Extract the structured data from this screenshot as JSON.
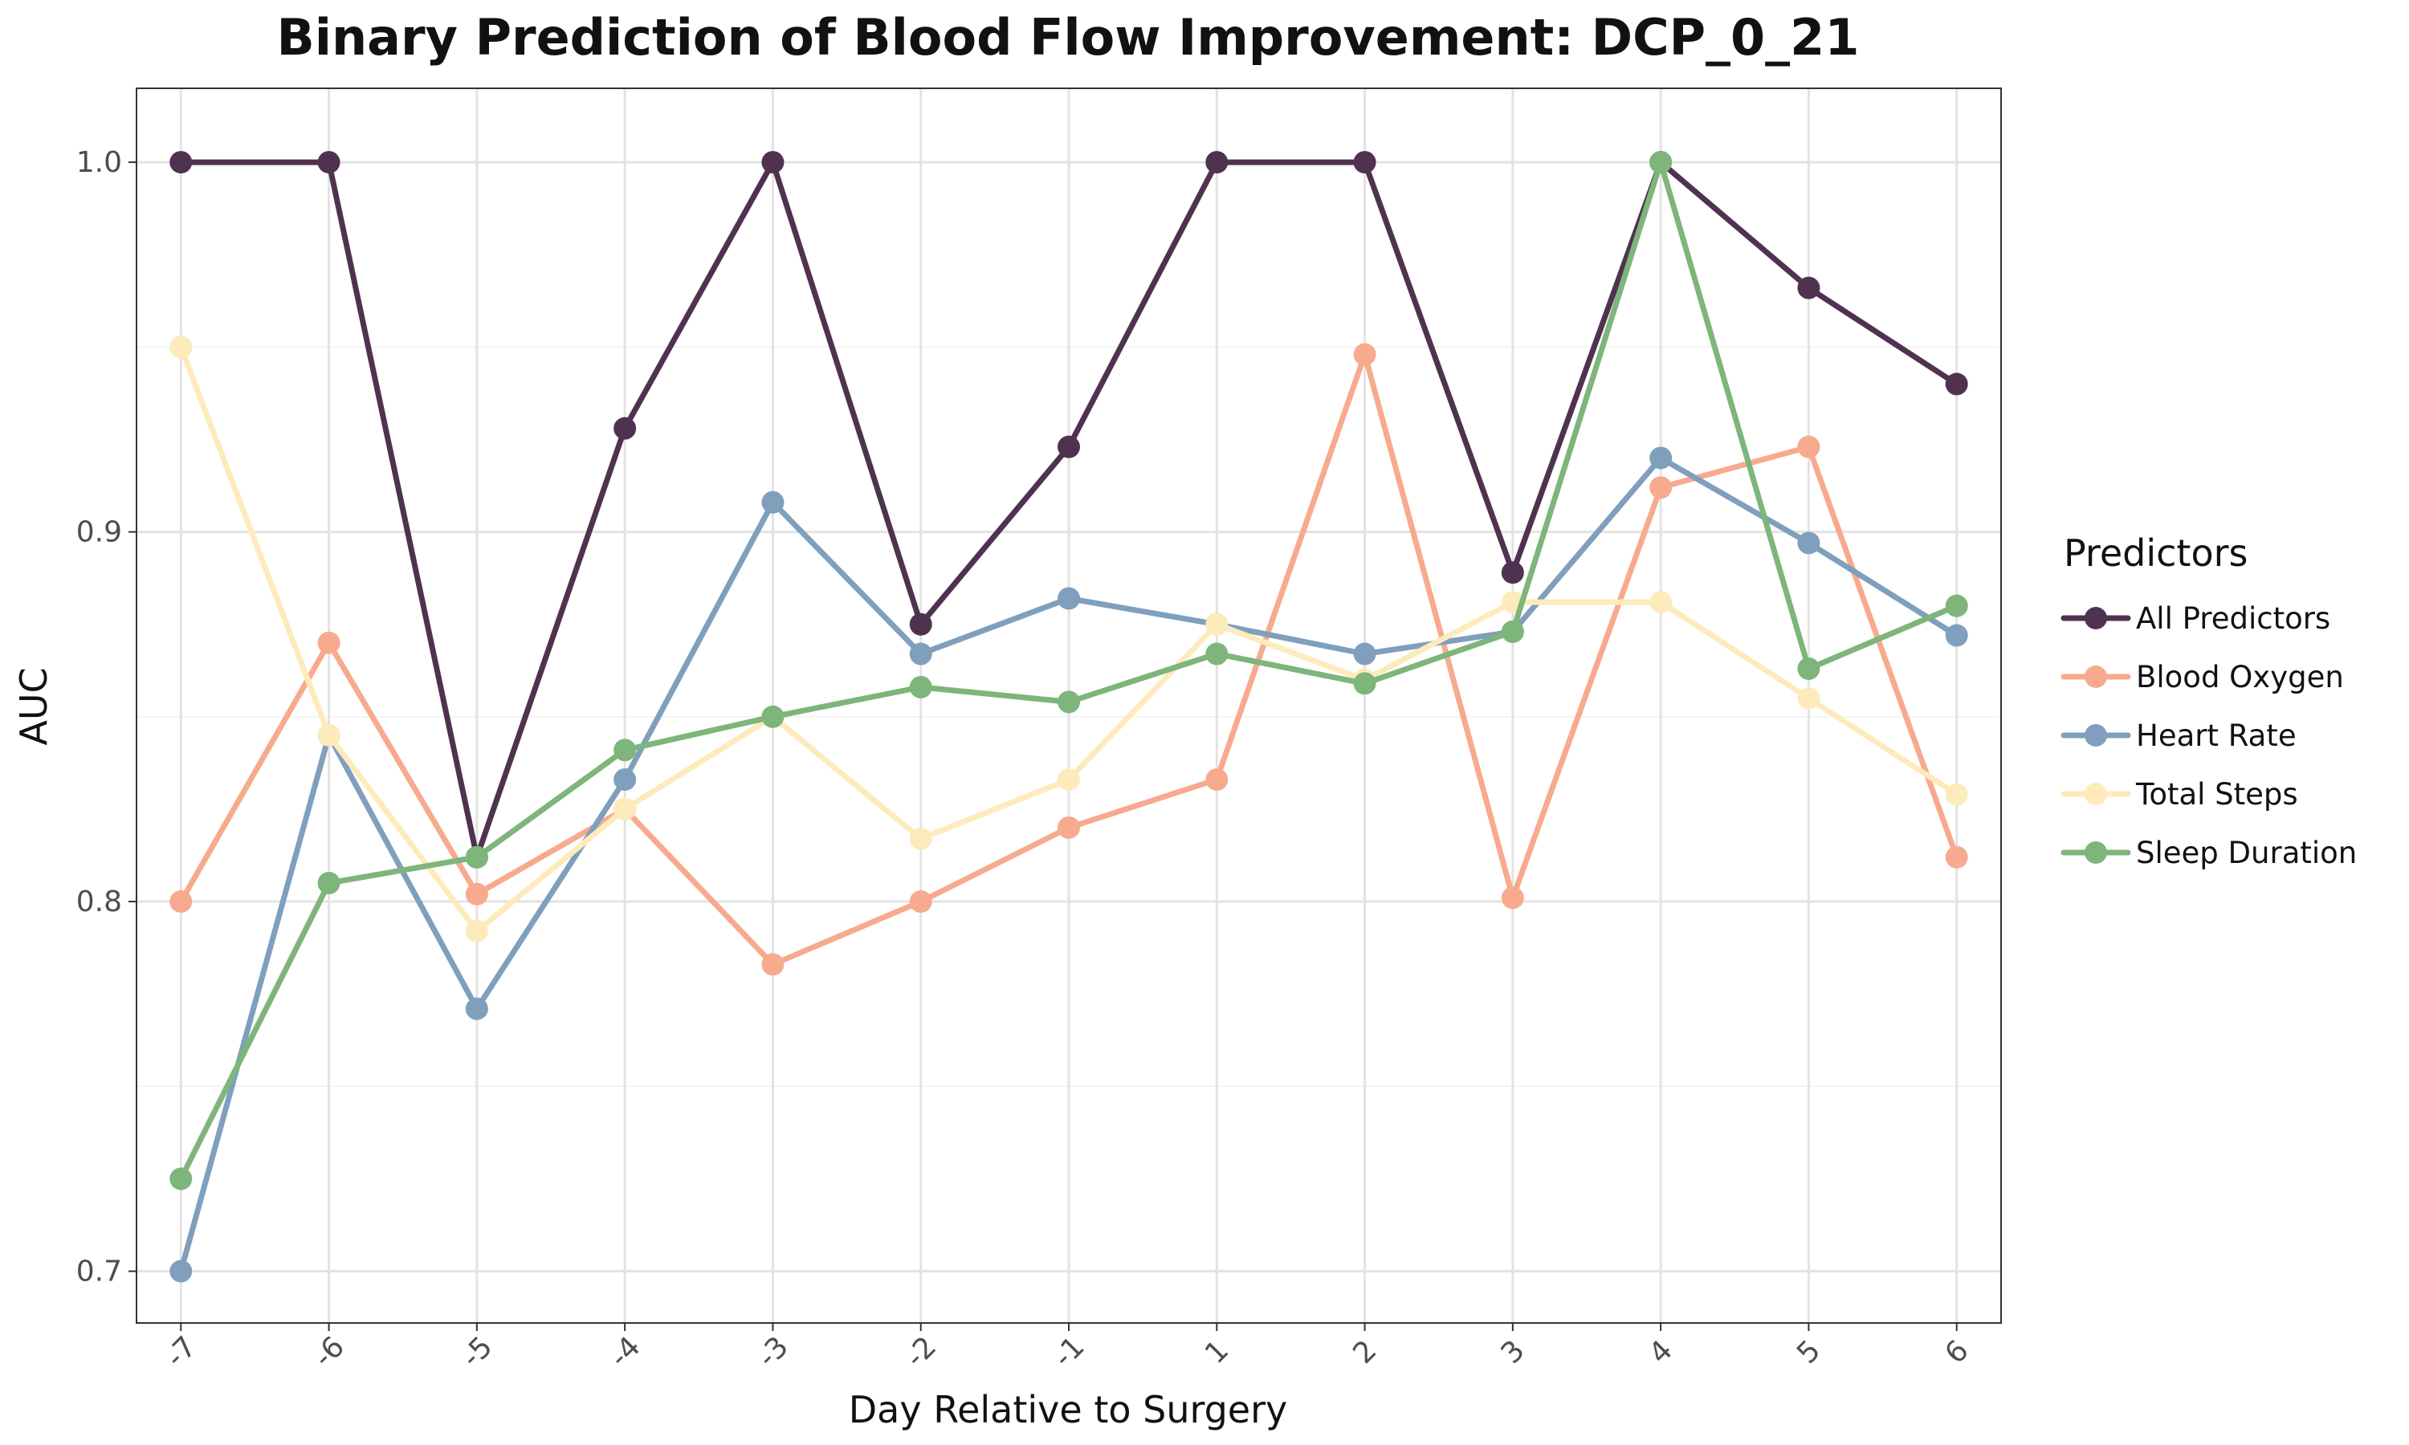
{
  "chart_data": {
    "type": "line",
    "title": "Binary Prediction of Blood Flow Improvement: DCP_0_21",
    "xlabel": "Day Relative to Surgery",
    "ylabel": "AUC",
    "categories": [
      "-7",
      "-6",
      "-5",
      "-4",
      "-3",
      "-2",
      "-1",
      "1",
      "2",
      "3",
      "4",
      "5",
      "6"
    ],
    "yticks": [
      "0.7",
      "0.8",
      "0.9",
      "1.0"
    ],
    "ylim": [
      0.686,
      1.02
    ],
    "grid": true,
    "legend": {
      "title": "Predictors",
      "position": "right"
    },
    "series": [
      {
        "name": "All Predictors",
        "color": "#4f3250",
        "values": [
          1.0,
          1.0,
          0.812,
          0.928,
          1.0,
          0.875,
          0.923,
          1.0,
          1.0,
          0.889,
          1.0,
          0.966,
          0.94
        ]
      },
      {
        "name": "Blood Oxygen",
        "color": "#f7aa8e",
        "values": [
          0.8,
          0.87,
          0.802,
          0.825,
          0.783,
          0.8,
          0.82,
          0.833,
          0.948,
          0.801,
          0.912,
          0.923,
          0.812
        ]
      },
      {
        "name": "Heart Rate",
        "color": "#7f9fbd",
        "values": [
          0.7,
          0.845,
          0.771,
          0.833,
          0.908,
          0.867,
          0.882,
          0.875,
          0.867,
          0.873,
          0.92,
          0.897,
          0.872
        ]
      },
      {
        "name": "Total Steps",
        "color": "#fdebbb",
        "values": [
          0.95,
          0.845,
          0.792,
          0.825,
          0.85,
          0.817,
          0.833,
          0.875,
          0.86,
          0.881,
          0.881,
          0.855,
          0.829
        ]
      },
      {
        "name": "Sleep Duration",
        "color": "#7eb57a",
        "values": [
          0.725,
          0.805,
          0.812,
          0.841,
          0.85,
          0.858,
          0.854,
          0.867,
          0.859,
          0.873,
          1.0,
          0.863,
          0.88
        ]
      }
    ]
  }
}
